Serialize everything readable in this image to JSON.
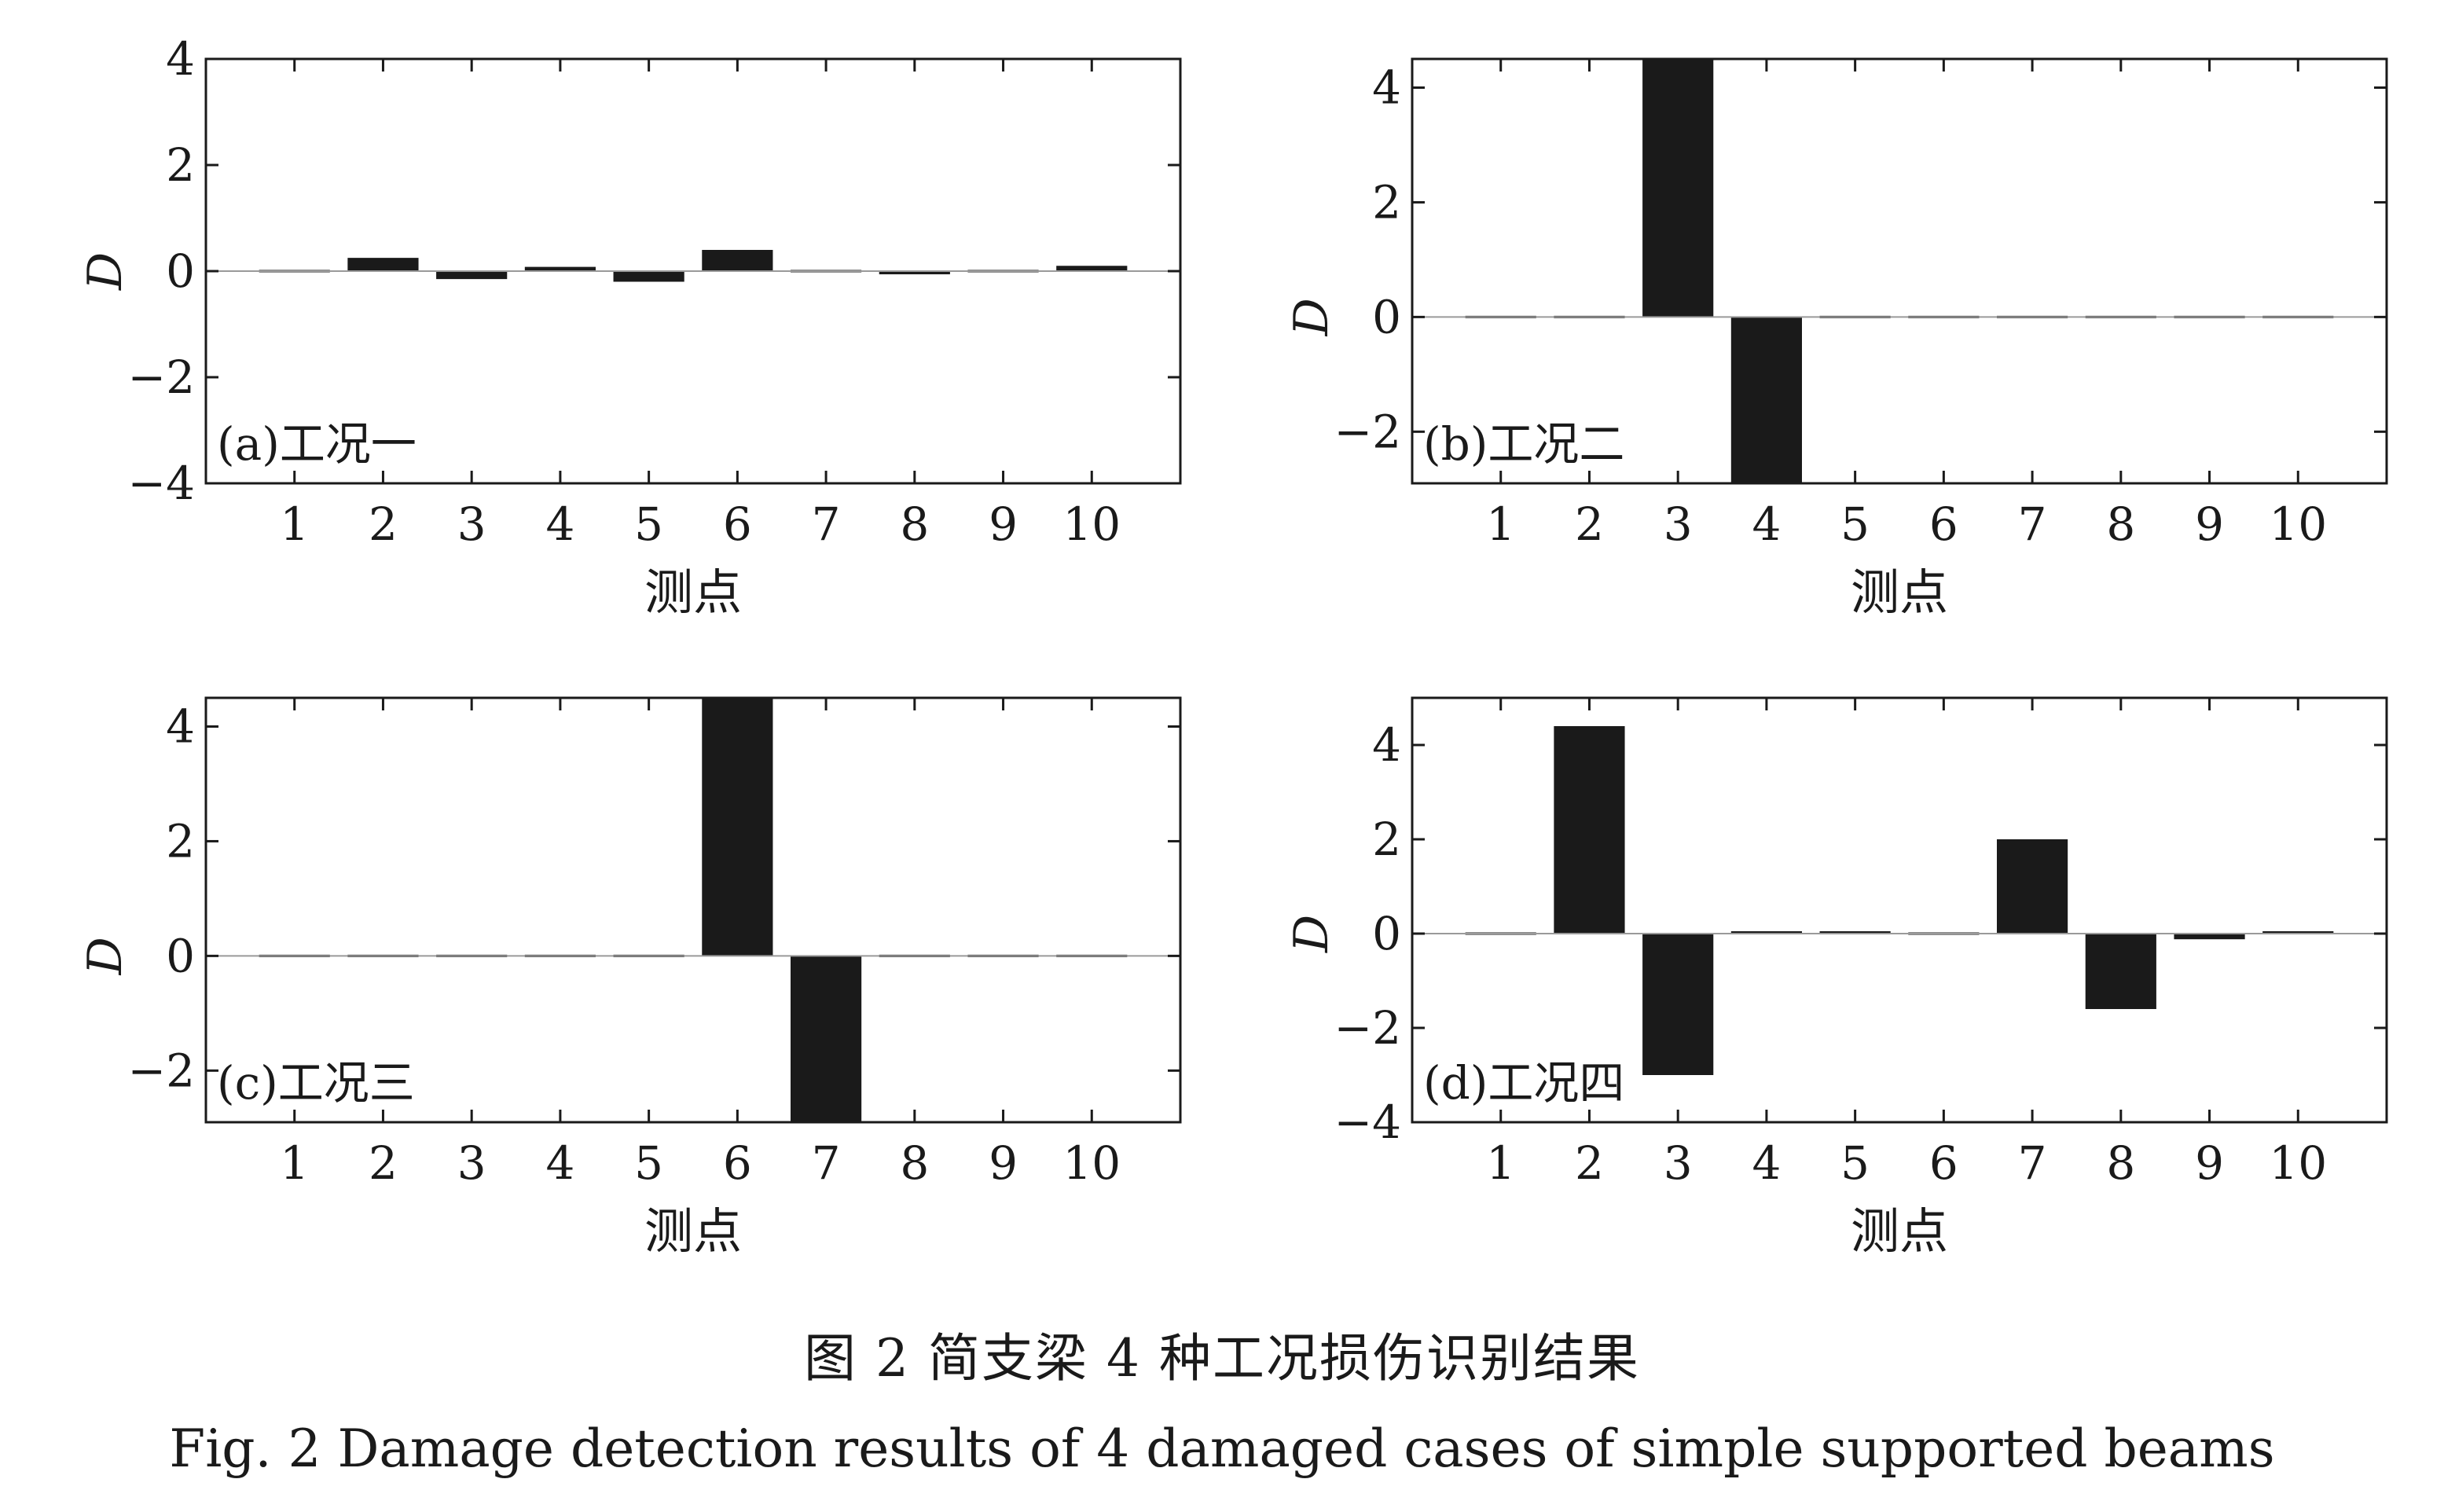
{
  "chart_data": [
    {
      "type": "bar",
      "panel_label": "(a)工况一",
      "xlabel": "测点",
      "ylabel": "D",
      "categories": [
        "1",
        "2",
        "3",
        "4",
        "5",
        "6",
        "7",
        "8",
        "9",
        "10"
      ],
      "values": [
        0,
        0.25,
        -0.15,
        0.08,
        -0.2,
        0.4,
        -0.02,
        -0.06,
        0.03,
        0.1
      ],
      "ylim": [
        -4,
        4
      ],
      "yticks": [
        -4,
        -2,
        0,
        2,
        4
      ],
      "ytick_labels": [
        "−4",
        "−2",
        "0",
        "2",
        "4"
      ],
      "grid": false,
      "bar_color": "#1a1a1a"
    },
    {
      "type": "bar",
      "panel_label": "(b)工况二",
      "xlabel": "测点",
      "ylabel": "D",
      "categories": [
        "1",
        "2",
        "3",
        "4",
        "5",
        "6",
        "7",
        "8",
        "9",
        "10"
      ],
      "values": [
        0,
        0,
        4.5,
        -3.0,
        0,
        0,
        0,
        0,
        0,
        0
      ],
      "ylim": [
        -2.9,
        4.5
      ],
      "yticks": [
        -2,
        0,
        2,
        4
      ],
      "ytick_labels": [
        "−2",
        "0",
        "2",
        "4"
      ],
      "grid": false,
      "bar_color": "#1a1a1a"
    },
    {
      "type": "bar",
      "panel_label": "(c)工况三",
      "xlabel": "测点",
      "ylabel": "D",
      "categories": [
        "1",
        "2",
        "3",
        "4",
        "5",
        "6",
        "7",
        "8",
        "9",
        "10"
      ],
      "values": [
        0,
        -0.01,
        -0.01,
        0,
        0.03,
        4.5,
        -3.0,
        0,
        0.02,
        0.02
      ],
      "ylim": [
        -2.9,
        4.5
      ],
      "yticks": [
        -2,
        0,
        2,
        4
      ],
      "ytick_labels": [
        "−2",
        "0",
        "2",
        "4"
      ],
      "grid": false,
      "bar_color": "#1a1a1a"
    },
    {
      "type": "bar",
      "panel_label": "(d)工况四",
      "xlabel": "测点",
      "ylabel": "D",
      "categories": [
        "1",
        "2",
        "3",
        "4",
        "5",
        "6",
        "7",
        "8",
        "9",
        "10"
      ],
      "values": [
        0,
        4.4,
        -3.0,
        0.05,
        0.05,
        -0.02,
        2.0,
        -1.6,
        -0.12,
        0.05
      ],
      "ylim": [
        -4,
        5
      ],
      "yticks": [
        -4,
        -2,
        0,
        2,
        4
      ],
      "ytick_labels": [
        "−4",
        "−2",
        "0",
        "2",
        "4"
      ],
      "grid": false,
      "bar_color": "#1a1a1a"
    }
  ],
  "caption": {
    "cn": "图 2   简支梁 4 种工况损伤识别结果",
    "en": "Fig. 2   Damage detection results of 4 damaged cases of simple supported beams"
  }
}
